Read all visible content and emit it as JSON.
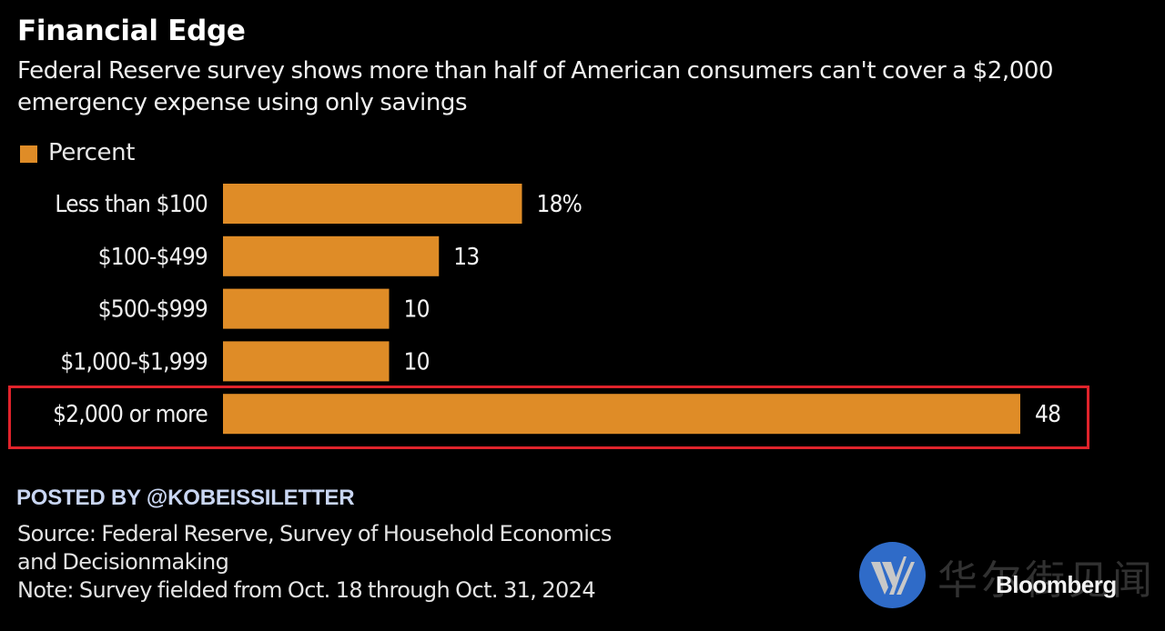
{
  "header": {
    "title": "Financial Edge",
    "subtitle": "Federal Reserve survey shows more than half of American consumers can't cover a $2,000 emergency expense using only savings"
  },
  "chart_data": {
    "type": "bar",
    "orientation": "horizontal",
    "title": "Financial Edge",
    "subtitle": "Federal Reserve survey shows more than half of American consumers can't cover a $2,000 emergency expense using only savings",
    "xlabel": "",
    "ylabel": "",
    "legend": {
      "entries": [
        "Percent"
      ],
      "position": "top-left"
    },
    "categories": [
      "Less than $100",
      "$100-$499",
      "$500-$999",
      "$1,000-$1,999",
      "$2,000 or more"
    ],
    "series": [
      {
        "name": "Percent",
        "values": [
          18,
          13,
          10,
          10,
          48
        ],
        "color": "#df8c27"
      }
    ],
    "data_labels": [
      "18%",
      "13",
      "10",
      "10",
      "48"
    ],
    "xlim": [
      0,
      48
    ],
    "grid": false,
    "highlighted_category": "$2,000 or more",
    "highlight_color": "#e0232b"
  },
  "footer": {
    "posted_by": "POSTED BY @KOBEISSILETTER",
    "source_line1": "Source: Federal Reserve, Survey of Household Economics",
    "source_line2": "and Decisionmaking",
    "note": "Note: Survey fielded from Oct. 18 through Oct. 31, 2024"
  },
  "watermark": {
    "logo_icon": "wallstreetcn-w-logo-icon",
    "logo_letter": "W",
    "logo_color": "#2f6bc8",
    "chinese_text": "华尔街见闻",
    "brand": "Bloomberg"
  },
  "colors": {
    "background": "#000000",
    "bar": "#df8c27",
    "highlight": "#e0232b",
    "posted_by": "#c9d6f2"
  }
}
